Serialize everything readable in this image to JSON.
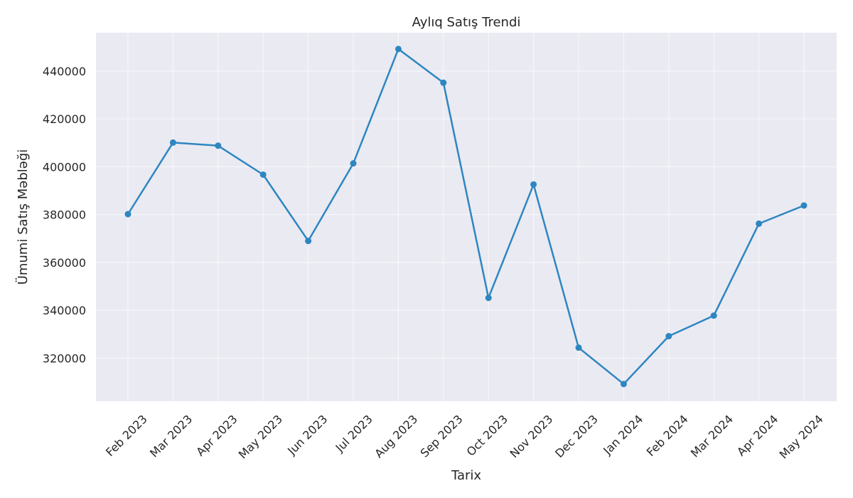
{
  "chart_data": {
    "type": "line",
    "title": "Aylıq Satış Trendi",
    "xlabel": "Tarix",
    "ylabel": "Ümumi Satış Məbləği",
    "categories": [
      "Feb 2023",
      "Mar 2023",
      "Apr 2023",
      "May 2023",
      "Jun 2023",
      "Jul 2023",
      "Aug 2023",
      "Sep 2023",
      "Oct 2023",
      "Nov 2023",
      "Dec 2023",
      "Jan 2024",
      "Feb 2024",
      "Mar 2024",
      "Apr 2024",
      "May 2024"
    ],
    "series": [
      {
        "values": [
          380200,
          410100,
          408800,
          396700,
          369000,
          401400,
          449200,
          435100,
          345200,
          392600,
          324400,
          309200,
          329200,
          337800,
          376200,
          383800
        ]
      }
    ],
    "yticks": [
      320000,
      340000,
      360000,
      380000,
      400000,
      420000,
      440000
    ],
    "ylim": [
      302000,
      456000
    ],
    "grid": true,
    "color": "#2e86c1",
    "background": "#eaeaf2"
  }
}
